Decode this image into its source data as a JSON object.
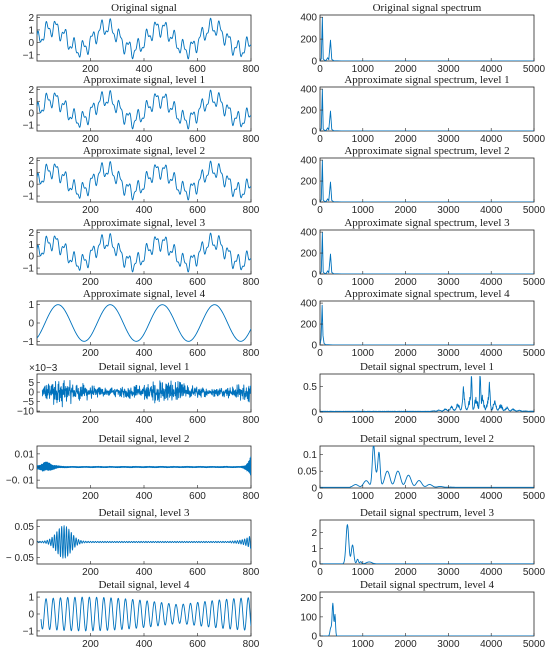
{
  "colors": {
    "line": "#0072bd",
    "axes": "#262626"
  },
  "chart_data": [
    {
      "id": "sig0",
      "type": "line",
      "title": "Original signal",
      "kind": "orig",
      "xlim": [
        0,
        800
      ],
      "ylim": [
        -1.5,
        2.2
      ],
      "xticks": [
        "200",
        "400",
        "600",
        "800"
      ],
      "xtick_values": [
        200,
        400,
        600,
        800
      ],
      "yticks": [
        "2",
        "1",
        "0",
        "−1"
      ],
      "ytick_values": [
        2,
        1,
        0,
        -1
      ],
      "exponent": ""
    },
    {
      "id": "spec0",
      "type": "line",
      "title": "Original signal spectrum",
      "kind": "spec_orig",
      "xlim": [
        0,
        5000
      ],
      "ylim": [
        0,
        420
      ],
      "xticks": [
        "0",
        "1000",
        "2000",
        "3000",
        "4000",
        "5000"
      ],
      "xtick_values": [
        0,
        1000,
        2000,
        3000,
        4000,
        5000
      ],
      "yticks": [
        "400",
        "200",
        "0"
      ],
      "ytick_values": [
        400,
        200,
        0
      ],
      "exponent": ""
    },
    {
      "id": "sig1",
      "type": "line",
      "title": "Approximate signal, level 1",
      "kind": "orig",
      "xlim": [
        0,
        800
      ],
      "ylim": [
        -1.5,
        2.2
      ],
      "xticks": [
        "200",
        "400",
        "600",
        "800"
      ],
      "xtick_values": [
        200,
        400,
        600,
        800
      ],
      "yticks": [
        "2",
        "1",
        "0",
        "−1"
      ],
      "ytick_values": [
        2,
        1,
        0,
        -1
      ],
      "exponent": ""
    },
    {
      "id": "spec1",
      "type": "line",
      "title": "Approximate signal spectrum, level 1",
      "kind": "spec_orig",
      "xlim": [
        0,
        5000
      ],
      "ylim": [
        0,
        420
      ],
      "xticks": [
        "0",
        "1000",
        "2000",
        "3000",
        "4000",
        "5000"
      ],
      "xtick_values": [
        0,
        1000,
        2000,
        3000,
        4000,
        5000
      ],
      "yticks": [
        "400",
        "200",
        "0"
      ],
      "ytick_values": [
        400,
        200,
        0
      ],
      "exponent": ""
    },
    {
      "id": "sig2",
      "type": "line",
      "title": "Approximate signal, level 2",
      "kind": "orig",
      "xlim": [
        0,
        800
      ],
      "ylim": [
        -1.5,
        2.2
      ],
      "xticks": [
        "200",
        "400",
        "600",
        "800"
      ],
      "xtick_values": [
        200,
        400,
        600,
        800
      ],
      "yticks": [
        "2",
        "1",
        "0",
        "−1"
      ],
      "ytick_values": [
        2,
        1,
        0,
        -1
      ],
      "exponent": ""
    },
    {
      "id": "spec2",
      "type": "line",
      "title": "Approximate signal spectrum, level 2",
      "kind": "spec_orig",
      "xlim": [
        0,
        5000
      ],
      "ylim": [
        0,
        420
      ],
      "xticks": [
        "0",
        "1000",
        "2000",
        "3000",
        "4000",
        "5000"
      ],
      "xtick_values": [
        0,
        1000,
        2000,
        3000,
        4000,
        5000
      ],
      "yticks": [
        "400",
        "200",
        "0"
      ],
      "ytick_values": [
        400,
        200,
        0
      ],
      "exponent": ""
    },
    {
      "id": "sig3",
      "type": "line",
      "title": "Approximate signal, level 3",
      "kind": "orig",
      "xlim": [
        0,
        800
      ],
      "ylim": [
        -1.5,
        2.2
      ],
      "xticks": [
        "200",
        "400",
        "600",
        "800"
      ],
      "xtick_values": [
        200,
        400,
        600,
        800
      ],
      "yticks": [
        "2",
        "1",
        "0",
        "−1"
      ],
      "ytick_values": [
        2,
        1,
        0,
        -1
      ],
      "exponent": ""
    },
    {
      "id": "spec3",
      "type": "line",
      "title": "Approximate signal spectrum, level 3",
      "kind": "spec_orig",
      "xlim": [
        0,
        5000
      ],
      "ylim": [
        0,
        420
      ],
      "xticks": [
        "0",
        "1000",
        "2000",
        "3000",
        "4000",
        "5000"
      ],
      "xtick_values": [
        0,
        1000,
        2000,
        3000,
        4000,
        5000
      ],
      "yticks": [
        "400",
        "200",
        "0"
      ],
      "ytick_values": [
        400,
        200,
        0
      ],
      "exponent": ""
    },
    {
      "id": "sig4",
      "type": "line",
      "title": "Approximate signal, level 4",
      "kind": "sine",
      "xlim": [
        0,
        800
      ],
      "ylim": [
        -1.2,
        1.2
      ],
      "xticks": [
        "200",
        "400",
        "600",
        "800"
      ],
      "xtick_values": [
        200,
        400,
        600,
        800
      ],
      "yticks": [
        "1",
        "0",
        "−1"
      ],
      "ytick_values": [
        1,
        0,
        -1
      ],
      "exponent": ""
    },
    {
      "id": "spec4",
      "type": "line",
      "title": "Approximate signal spectrum, level 4",
      "kind": "spec_sine",
      "xlim": [
        0,
        5000
      ],
      "ylim": [
        0,
        420
      ],
      "xticks": [
        "0",
        "1000",
        "2000",
        "3000",
        "4000",
        "5000"
      ],
      "xtick_values": [
        0,
        1000,
        2000,
        3000,
        4000,
        5000
      ],
      "yticks": [
        "400",
        "200",
        "0"
      ],
      "ytick_values": [
        400,
        200,
        0
      ],
      "exponent": ""
    },
    {
      "id": "sig5",
      "type": "line",
      "title": "Detail signal, level 1",
      "kind": "noise",
      "xlim": [
        0,
        800
      ],
      "ylim": [
        -0.0105,
        0.0095
      ],
      "xticks": [
        "200",
        "400",
        "600",
        "800"
      ],
      "xtick_values": [
        200,
        400,
        600,
        800
      ],
      "yticks": [
        "5",
        "0",
        "−5",
        "−10"
      ],
      "ytick_values": [
        0.005,
        0,
        -0.005,
        -0.01
      ],
      "exponent": "×10−3"
    },
    {
      "id": "spec5",
      "type": "line",
      "title": "Detail signal spectrum, level 1",
      "kind": "spec_d1",
      "xlim": [
        0,
        5000
      ],
      "ylim": [
        0,
        0.75
      ],
      "xticks": [
        "0",
        "1000",
        "2000",
        "3000",
        "4000",
        "5000"
      ],
      "xtick_values": [
        0,
        1000,
        2000,
        3000,
        4000,
        5000
      ],
      "yticks": [
        "0.5",
        "0"
      ],
      "ytick_values": [
        0.5,
        0
      ],
      "exponent": ""
    },
    {
      "id": "sig6",
      "type": "line",
      "title": "Detail signal, level 2",
      "kind": "edge",
      "xlim": [
        0,
        800
      ],
      "ylim": [
        -0.016,
        0.016
      ],
      "xticks": [
        "200",
        "400",
        "600",
        "800"
      ],
      "xtick_values": [
        200,
        400,
        600,
        800
      ],
      "yticks": [
        "0.01",
        "0",
        "−0. 01"
      ],
      "ytick_values": [
        0.01,
        0,
        -0.01
      ],
      "exponent": ""
    },
    {
      "id": "spec6",
      "type": "line",
      "title": "Detail signal spectrum, level 2",
      "kind": "spec_d2",
      "xlim": [
        0,
        5000
      ],
      "ylim": [
        0,
        0.125
      ],
      "xticks": [
        "0",
        "1000",
        "2000",
        "3000",
        "4000",
        "5000"
      ],
      "xtick_values": [
        0,
        1000,
        2000,
        3000,
        4000,
        5000
      ],
      "yticks": [
        "0.1",
        "0.05",
        "0"
      ],
      "ytick_values": [
        0.1,
        0.05,
        0
      ],
      "exponent": ""
    },
    {
      "id": "sig7",
      "type": "line",
      "title": "Detail signal, level 3",
      "kind": "burst",
      "xlim": [
        0,
        800
      ],
      "ylim": [
        -0.07,
        0.07
      ],
      "xticks": [
        "200",
        "400",
        "600",
        "800"
      ],
      "xtick_values": [
        200,
        400,
        600,
        800
      ],
      "yticks": [
        "0.05",
        "0",
        "− 0.05"
      ],
      "ytick_values": [
        0.05,
        0,
        -0.05
      ],
      "exponent": ""
    },
    {
      "id": "spec7",
      "type": "line",
      "title": "Detail signal spectrum, level 3",
      "kind": "spec_d3",
      "xlim": [
        0,
        5000
      ],
      "ylim": [
        0,
        2.8
      ],
      "xticks": [
        "0",
        "1000",
        "2000",
        "3000",
        "4000",
        "5000"
      ],
      "xtick_values": [
        0,
        1000,
        2000,
        3000,
        4000,
        5000
      ],
      "yticks": [
        "2",
        "1",
        "0"
      ],
      "ytick_values": [
        2,
        1,
        0
      ],
      "exponent": ""
    },
    {
      "id": "sig8",
      "type": "line",
      "title": "Detail signal, level 4",
      "kind": "beat",
      "xlim": [
        0,
        800
      ],
      "ylim": [
        -1.3,
        1.3
      ],
      "xticks": [
        "200",
        "400",
        "600",
        "800"
      ],
      "xtick_values": [
        200,
        400,
        600,
        800
      ],
      "yticks": [
        "1",
        "0",
        "−1"
      ],
      "ytick_values": [
        1,
        0,
        -1
      ],
      "exponent": ""
    },
    {
      "id": "spec8",
      "type": "line",
      "title": "Detail signal spectrum, level 4",
      "kind": "spec_d4",
      "xlim": [
        0,
        5000
      ],
      "ylim": [
        0,
        230
      ],
      "xticks": [
        "0",
        "1000",
        "2000",
        "3000",
        "4000",
        "5000"
      ],
      "xtick_values": [
        0,
        1000,
        2000,
        3000,
        4000,
        5000
      ],
      "yticks": [
        "200",
        "100",
        "0"
      ],
      "ytick_values": [
        200,
        100,
        0
      ],
      "exponent": ""
    }
  ]
}
